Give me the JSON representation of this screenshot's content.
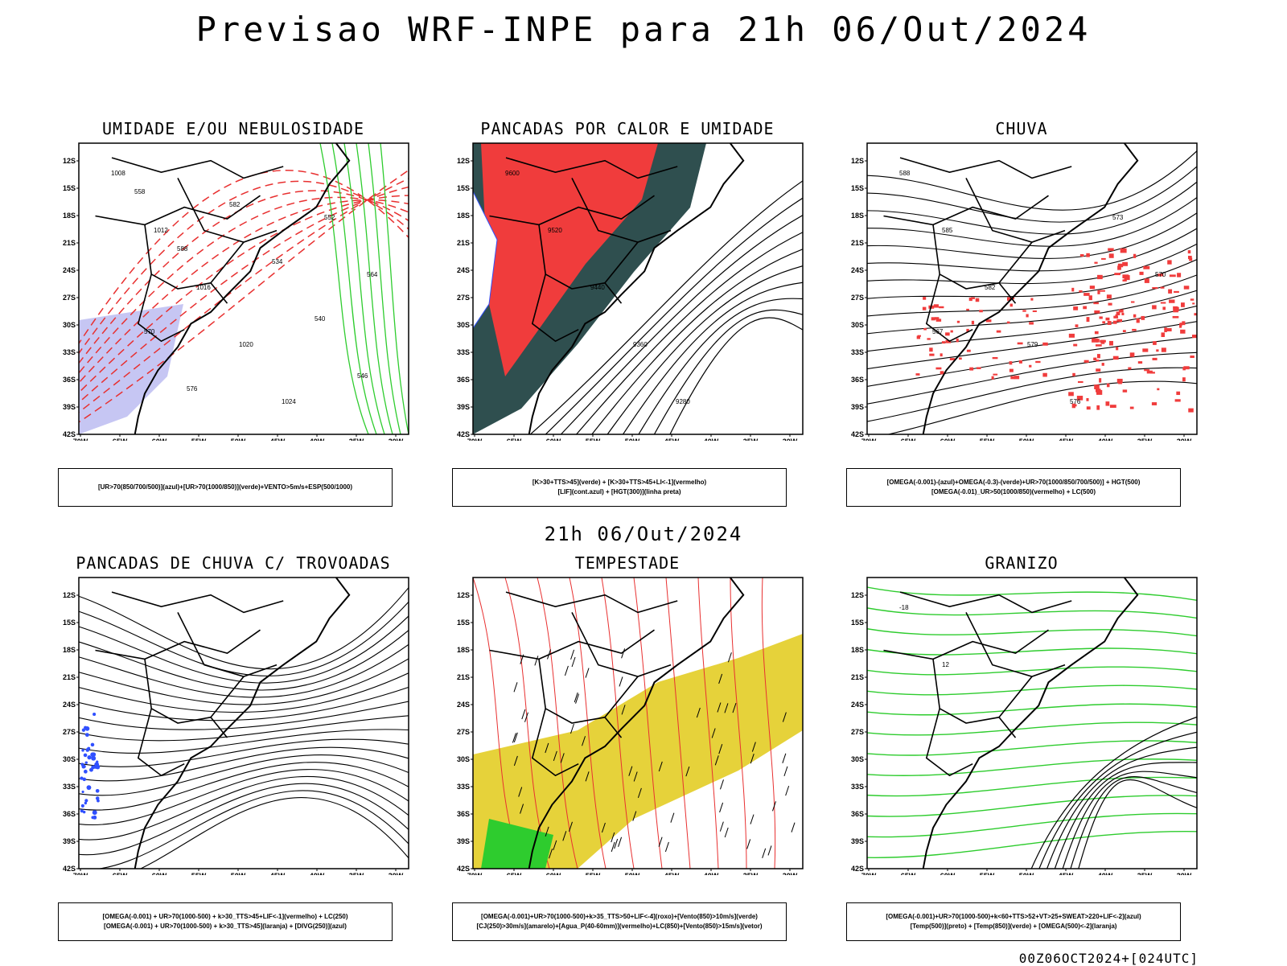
{
  "header": {
    "title": "Previsao WRF-INPE  para 21h 06/Out/2024"
  },
  "mid_time": "21h 06/Out/2024",
  "footer": "00Z06OCT2024+[024UTC]",
  "axes": {
    "lat_labels": [
      "12S",
      "15S",
      "18S",
      "21S",
      "24S",
      "27S",
      "30S",
      "33S",
      "36S",
      "39S",
      "42S"
    ],
    "lon_labels": [
      "70W",
      "65W",
      "60W",
      "55W",
      "50W",
      "45W",
      "40W",
      "35W",
      "30W"
    ]
  },
  "colors": {
    "humidity_blue": "#b8b8f0",
    "rain_red": "#f03c3c",
    "storm_yellow": "#e6d23a",
    "dark_teal": "#2f4f4f",
    "green": "#2ecc2e",
    "blue": "#3050ff",
    "contour_red": "#e83030"
  },
  "panels": [
    {
      "id": "umidade",
      "title": "UMIDADE E/OU NEBULOSIDADE",
      "legend": [
        "[UR>70(850/700/500)](azul)+[UR>70(1000/850)](verde)+VENTO>5m/s+ESP(500/1000)"
      ],
      "labels": [
        "1008",
        "1012",
        "1016",
        "1020",
        "1024",
        "552",
        "564",
        "570",
        "576",
        "582",
        "534",
        "540",
        "546",
        "558",
        "588"
      ]
    },
    {
      "id": "pancadas_calor",
      "title": "PANCADAS POR CALOR E UMIDADE",
      "legend": [
        "[K>30+TTS>45](verde) + [K>30+TTS>45+LI<-1](vermelho)",
        "[LIF](cont.azul) + [HGT(300)](linha preta)"
      ],
      "labels": [
        "9600",
        "9520",
        "9440",
        "9360",
        "9280"
      ]
    },
    {
      "id": "chuva",
      "title": "CHUVA",
      "legend": [
        "[OMEGA(-0.001)-(azul)+OMEGA(-0.3)-(verde)+UR>70(1000/850/700/500)] + HGT(500)",
        "[OMEGA(-0.01)_UR>50(1000/850)(vermelho) + LC(500)"
      ],
      "labels": [
        "588",
        "585",
        "582",
        "579",
        "576",
        "573",
        "570",
        "567"
      ]
    },
    {
      "id": "trovoadas",
      "title": "PANCADAS DE CHUVA C/ TROVOADAS",
      "legend": [
        "[OMEGA(-0.001) + UR>70(1000-500) + k>30_TTS>45+LIF<-1](vermelho) + LC(250)",
        "[OMEGA(-0.001) + UR>70(1000-500) + k>30_TTS>45](laranja) + [DIVG(250)](azul)"
      ],
      "labels": []
    },
    {
      "id": "tempestade",
      "title": "TEMPESTADE",
      "legend": [
        "[OMEGA(-0.001)+UR>70(1000-500)+k>35_TTS>50+LIF<-4](roxo)+[Vento(850)>10m/s](verde)",
        "[CJ(250)>30m/s](amarelo)+[Agua_P(40-60mm)](vermelho)+LC(850)+[Vento(850)>15m/s](vetor)"
      ],
      "labels": []
    },
    {
      "id": "granizo",
      "title": "GRANIZO",
      "legend": [
        "[OMEGA(-0.001)+UR>70(1000-500)+k<60+TTS>52+VT>25+SWEAT>220+LIF<-2](azul)",
        "[Temp(500)](preto) + [Temp(850)](verde) + [OMEGA(500)<-2](laranja)"
      ],
      "labels": [
        "-18",
        "12"
      ]
    }
  ]
}
